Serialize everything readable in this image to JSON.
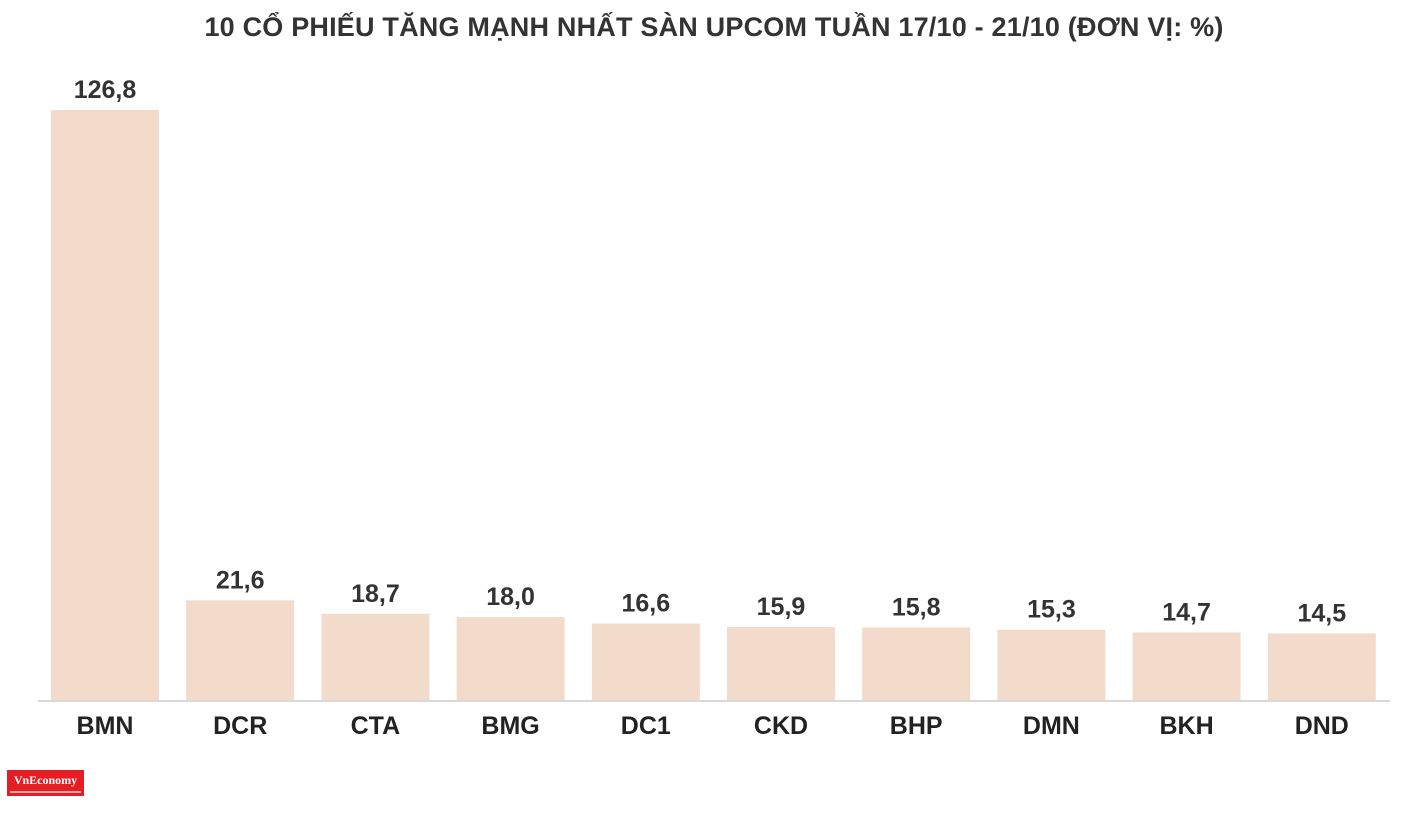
{
  "chart_data": {
    "type": "bar",
    "title": "10 CỔ PHIẾU TĂNG MẠNH NHẤT SÀN UPCOM TUẦN 17/10 - 21/10 (ĐƠN VỊ: %)",
    "categories": [
      "BMN",
      "DCR",
      "CTA",
      "BMG",
      "DC1",
      "CKD",
      "BHP",
      "DMN",
      "BKH",
      "DND"
    ],
    "values": [
      126.8,
      21.6,
      18.7,
      18.0,
      16.6,
      15.9,
      15.8,
      15.3,
      14.7,
      14.5
    ],
    "value_labels": [
      "126,8",
      "21,6",
      "18,7",
      "18,0",
      "16,6",
      "15,9",
      "15,8",
      "15,3",
      "14,7",
      "14,5"
    ],
    "xlabel": "",
    "ylabel": "",
    "ylim": [
      0,
      126.8
    ],
    "grid": false,
    "bar_color": "#f2dbca",
    "axis_color": "#d9d9d9",
    "text_color": "#333333"
  },
  "logo": {
    "text": "VnEconomy",
    "color": "#e31e24"
  }
}
